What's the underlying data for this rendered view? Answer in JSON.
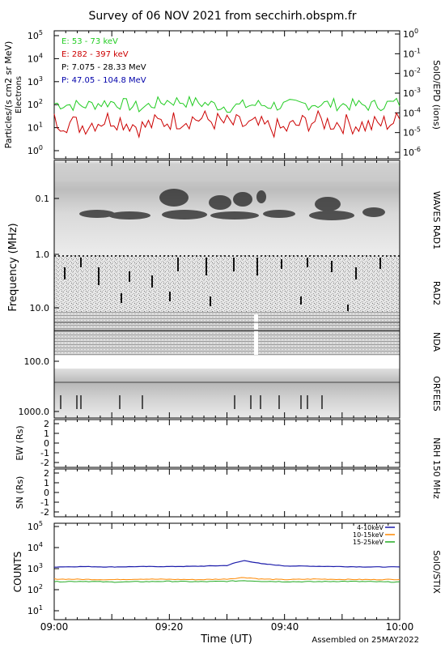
{
  "title": "Survey of 06 NOV 2021 from secchirh.obspm.fr",
  "footer": "Assembled on 25MAY2022",
  "time_axis": {
    "label": "Time (UT)",
    "ticks": [
      "09:00",
      "09:20",
      "09:40",
      "10:00"
    ]
  },
  "colors": {
    "green": "#22cc22",
    "red": "#cc0000",
    "black": "#000000",
    "blue": "#0000aa",
    "orange": "#ff8800",
    "stix_blue": "#1a1aaa"
  },
  "particles": {
    "ylabel": "Particles/(s cm2 sr MeV)",
    "ylabel2": "Electrons",
    "right_label": "SolO/EPD (ions)",
    "left_ticks": [
      "10",
      "10",
      "10",
      "10",
      "10",
      "10"
    ],
    "left_exps": [
      "5",
      "4",
      "3",
      "2",
      "1",
      "0"
    ],
    "right_ticks": [
      "10",
      "10",
      "10",
      "10",
      "10",
      "10",
      "10"
    ],
    "right_exps": [
      "0",
      "-1",
      "-2",
      "-3",
      "-4",
      "-5",
      "-6"
    ],
    "legend": [
      {
        "label": "E: 53 - 73 keV",
        "color": "#22cc22"
      },
      {
        "label": "E: 282 - 397 keV",
        "color": "#cc0000"
      },
      {
        "label": "P: 7.075 - 28.33 MeV",
        "color": "#000000"
      },
      {
        "label": "P: 47.05 - 104.8 MeV",
        "color": "#0000aa"
      }
    ]
  },
  "spectrogram": {
    "ylabel": "Frequency (MHz)",
    "ticks": [
      "0.1",
      "1.0",
      "10.0",
      "100.0",
      "1000.0"
    ],
    "instruments": [
      "WAVES RAD1",
      "RAD2",
      "NDA",
      "ORFEES"
    ]
  },
  "nrh": {
    "instrument": "NRH 150 MHz",
    "ew_label": "EW (Rs)",
    "sn_label": "SN (Rs)",
    "ticks": [
      "2",
      "1",
      "0",
      "-1",
      "-2"
    ]
  },
  "stix": {
    "ylabel": "COUNTS",
    "instrument": "SolO/STIX",
    "tick_base": [
      "10",
      "10",
      "10",
      "10",
      "10"
    ],
    "tick_exps": [
      "5",
      "4",
      "3",
      "2",
      "1"
    ],
    "legend": [
      {
        "label": "4-10keV",
        "color": "#1a1aaa"
      },
      {
        "label": "10-15keV",
        "color": "#ff8800"
      },
      {
        "label": "15-25keV",
        "color": "#22aa22"
      }
    ]
  },
  "chart_data": [
    {
      "type": "line",
      "title": "",
      "xlabel": "Time (UT)",
      "ylabel": "Particles/(s cm2 sr MeV)",
      "yscale": "log",
      "ylim": [
        1,
        100000
      ],
      "x": [
        "09:00",
        "09:05",
        "09:10",
        "09:15",
        "09:20",
        "09:25",
        "09:30",
        "09:35",
        "09:40",
        "09:45",
        "09:50",
        "09:55",
        "10:00"
      ],
      "series": [
        {
          "name": "E: 53 - 73 keV",
          "values": [
            110,
            90,
            130,
            70,
            150,
            120,
            80,
            100,
            90,
            110,
            100,
            90,
            120
          ]
        },
        {
          "name": "E: 282 - 397 keV",
          "values": [
            20,
            12,
            25,
            10,
            20,
            25,
            15,
            12,
            8,
            20,
            15,
            12,
            20
          ]
        }
      ]
    },
    {
      "type": "heatmap",
      "title": "",
      "xlabel": "Time (UT)",
      "ylabel": "Frequency (MHz)",
      "yscale": "log",
      "ylim": [
        0.02,
        1000
      ],
      "legend": "none"
    },
    {
      "type": "scatter",
      "title": "",
      "ylabel": "EW (Rs)",
      "ylim": [
        -2.5,
        2.5
      ],
      "series": []
    },
    {
      "type": "scatter",
      "title": "",
      "ylabel": "SN (Rs)",
      "ylim": [
        -2.5,
        2.5
      ],
      "series": []
    },
    {
      "type": "line",
      "title": "",
      "xlabel": "Time (UT)",
      "ylabel": "COUNTS",
      "yscale": "log",
      "ylim": [
        10,
        100000
      ],
      "x": [
        "09:00",
        "09:05",
        "09:10",
        "09:15",
        "09:20",
        "09:25",
        "09:30",
        "09:33",
        "09:36",
        "09:40",
        "09:45",
        "09:50",
        "09:55",
        "10:00"
      ],
      "series": [
        {
          "name": "4-10keV",
          "values": [
            1200,
            1250,
            1200,
            1250,
            1250,
            1300,
            1400,
            2400,
            1700,
            1350,
            1300,
            1250,
            1200,
            1200
          ]
        },
        {
          "name": "10-15keV",
          "values": [
            320,
            310,
            300,
            320,
            310,
            300,
            320,
            380,
            320,
            300,
            320,
            310,
            300,
            310
          ]
        },
        {
          "name": "15-25keV",
          "values": [
            240,
            250,
            230,
            240,
            250,
            240,
            250,
            270,
            250,
            240,
            240,
            250,
            240,
            230
          ]
        }
      ]
    }
  ]
}
